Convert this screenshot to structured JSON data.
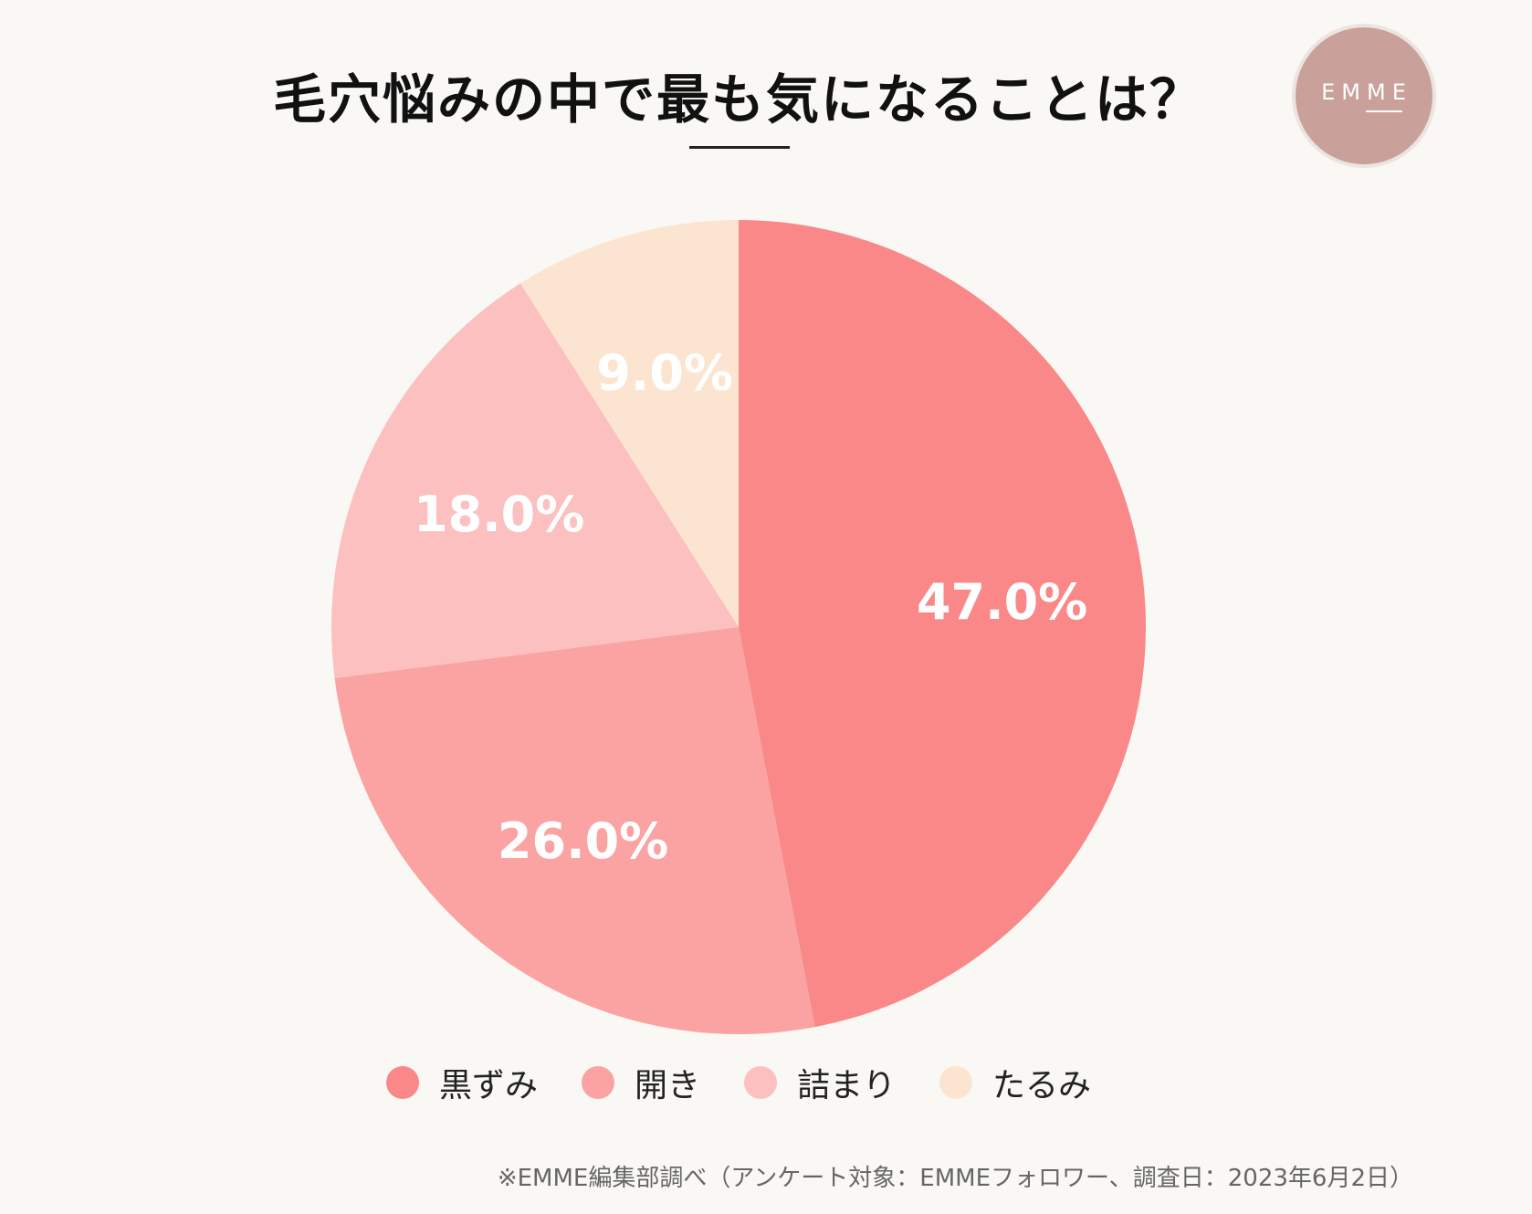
{
  "chart_data": {
    "type": "pie",
    "title": "毛穴悩みの中で最も気になることは？",
    "categories": [
      "黒ずみ",
      "開き",
      "詰まり",
      "たるみ"
    ],
    "values": [
      47.0,
      26.0,
      18.0,
      9.0
    ],
    "labels": [
      "47.0%",
      "26.0%",
      "18.0%",
      "9.0%"
    ],
    "colors": [
      "#fa8888",
      "#fba3a3",
      "#fcc0c0",
      "#fce5d0"
    ],
    "legend": "bottom"
  },
  "logo": {
    "text": "EMME",
    "bg": "#c9a09a"
  },
  "footnote": "※EMME編集部調べ（アンケート対象：EMMEフォロワー、調査日：2023年6月2日）"
}
